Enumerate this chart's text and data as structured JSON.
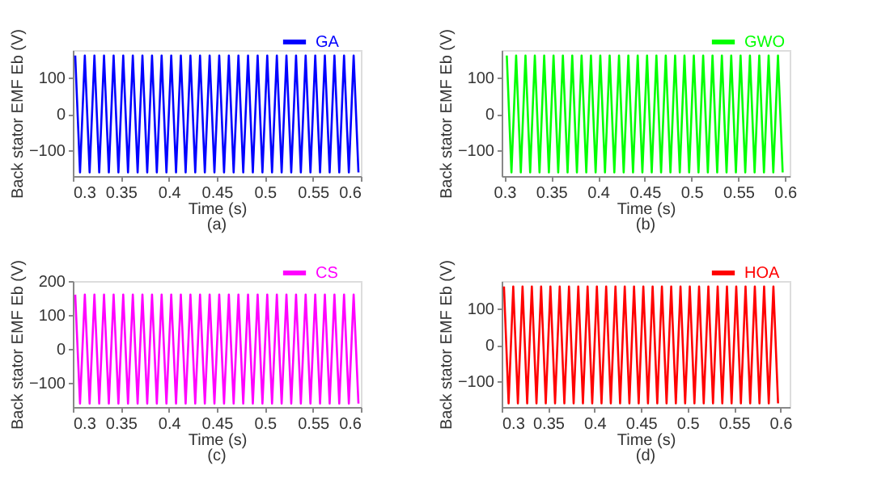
{
  "chart_data": [
    {
      "type": "line",
      "xlabel": "Time (s)",
      "ylabel": "Back stator EMF Eb (V)",
      "annotations": [
        "(a)"
      ],
      "legend": "top right",
      "grid": false,
      "xlim": [
        0.3,
        0.6
      ],
      "xticks": [
        0.3,
        0.35,
        0.4,
        0.45,
        0.5,
        0.55,
        0.6
      ],
      "ylim": [
        -170,
        175
      ],
      "yticks": [
        -100,
        0,
        100
      ],
      "x": [
        0.3025,
        0.3075,
        0.3125,
        0.3175,
        0.3225,
        0.3275,
        0.3325,
        0.3375,
        0.3425,
        0.3475,
        0.3525,
        0.3575,
        0.3625,
        0.3675,
        0.3725,
        0.3775,
        0.3825,
        0.3875,
        0.3925,
        0.3975,
        0.4025,
        0.4075,
        0.4125,
        0.4175,
        0.4225,
        0.4275,
        0.4325,
        0.4375,
        0.4425,
        0.4475,
        0.4525,
        0.4575,
        0.4625,
        0.4675,
        0.4725,
        0.4775,
        0.4825,
        0.4875,
        0.4925,
        0.4975,
        0.5025,
        0.5075,
        0.5125,
        0.5175,
        0.5225,
        0.5275,
        0.5325,
        0.5375,
        0.5425,
        0.5475,
        0.5525,
        0.5575,
        0.5625,
        0.5675,
        0.5725,
        0.5775,
        0.5825,
        0.5875,
        0.5925,
        0.5975
      ],
      "series": [
        {
          "name": "GA",
          "color": "#0000ff",
          "values": [
            160,
            -160,
            160,
            -160,
            160,
            -160,
            160,
            -160,
            160,
            -160,
            160,
            -160,
            160,
            -160,
            160,
            -160,
            160,
            -160,
            160,
            -160,
            160,
            -160,
            160,
            -160,
            160,
            -160,
            160,
            -160,
            160,
            -160,
            160,
            -160,
            160,
            -160,
            160,
            -160,
            160,
            -160,
            160,
            -160,
            160,
            -160,
            160,
            -160,
            160,
            -160,
            160,
            -160,
            160,
            -160,
            160,
            -160,
            160,
            -160,
            160,
            -160,
            160,
            -160,
            160,
            -160
          ]
        }
      ]
    },
    {
      "type": "line",
      "xlabel": "Time (s)",
      "ylabel": "Back stator EMF Eb (V)",
      "annotations": [
        "(b)"
      ],
      "legend": "top right",
      "grid": false,
      "xlim": [
        0.297,
        0.605
      ],
      "xticks": [
        0.3,
        0.35,
        0.4,
        0.45,
        0.5,
        0.55,
        0.6
      ],
      "ylim": [
        -170,
        175
      ],
      "yticks": [
        -100,
        0,
        100
      ],
      "x": [
        0.3025,
        0.3075,
        0.3125,
        0.3175,
        0.3225,
        0.3275,
        0.3325,
        0.3375,
        0.3425,
        0.3475,
        0.3525,
        0.3575,
        0.3625,
        0.3675,
        0.3725,
        0.3775,
        0.3825,
        0.3875,
        0.3925,
        0.3975,
        0.4025,
        0.4075,
        0.4125,
        0.4175,
        0.4225,
        0.4275,
        0.4325,
        0.4375,
        0.4425,
        0.4475,
        0.4525,
        0.4575,
        0.4625,
        0.4675,
        0.4725,
        0.4775,
        0.4825,
        0.4875,
        0.4925,
        0.4975,
        0.5025,
        0.5075,
        0.5125,
        0.5175,
        0.5225,
        0.5275,
        0.5325,
        0.5375,
        0.5425,
        0.5475,
        0.5525,
        0.5575,
        0.5625,
        0.5675,
        0.5725,
        0.5775,
        0.5825,
        0.5875,
        0.5925,
        0.5975
      ],
      "series": [
        {
          "name": "GWO",
          "color": "#00ff00",
          "values": [
            160,
            -160,
            160,
            -160,
            160,
            -160,
            160,
            -160,
            160,
            -160,
            160,
            -160,
            160,
            -160,
            160,
            -160,
            160,
            -160,
            160,
            -160,
            160,
            -160,
            160,
            -160,
            160,
            -160,
            160,
            -160,
            160,
            -160,
            160,
            -160,
            160,
            -160,
            160,
            -160,
            160,
            -160,
            160,
            -160,
            160,
            -160,
            160,
            -160,
            160,
            -160,
            160,
            -160,
            160,
            -160,
            160,
            -160,
            160,
            -160,
            160,
            -160,
            160,
            -160,
            160,
            -160
          ]
        }
      ]
    },
    {
      "type": "line",
      "xlabel": "Time (s)",
      "ylabel": "Back stator EMF Eb (V)",
      "annotations": [
        "(c)"
      ],
      "legend": "top right",
      "grid": false,
      "xlim": [
        0.3,
        0.6
      ],
      "xticks": [
        0.3,
        0.35,
        0.4,
        0.45,
        0.5,
        0.55,
        0.6
      ],
      "ylim": [
        -170,
        200
      ],
      "yticks": [
        -100,
        0,
        100,
        200
      ],
      "x": [
        0.3025,
        0.3075,
        0.3125,
        0.3175,
        0.3225,
        0.3275,
        0.3325,
        0.3375,
        0.3425,
        0.3475,
        0.3525,
        0.3575,
        0.3625,
        0.3675,
        0.3725,
        0.3775,
        0.3825,
        0.3875,
        0.3925,
        0.3975,
        0.4025,
        0.4075,
        0.4125,
        0.4175,
        0.4225,
        0.4275,
        0.4325,
        0.4375,
        0.4425,
        0.4475,
        0.4525,
        0.4575,
        0.4625,
        0.4675,
        0.4725,
        0.4775,
        0.4825,
        0.4875,
        0.4925,
        0.4975,
        0.5025,
        0.5075,
        0.5125,
        0.5175,
        0.5225,
        0.5275,
        0.5325,
        0.5375,
        0.5425,
        0.5475,
        0.5525,
        0.5575,
        0.5625,
        0.5675,
        0.5725,
        0.5775,
        0.5825,
        0.5875,
        0.5925,
        0.5975
      ],
      "series": [
        {
          "name": "CS",
          "color": "#ff00ff",
          "values": [
            160,
            -160,
            160,
            -160,
            160,
            -160,
            160,
            -160,
            160,
            -160,
            160,
            -160,
            160,
            -160,
            160,
            -160,
            160,
            -160,
            160,
            -160,
            160,
            -160,
            160,
            -160,
            160,
            -160,
            160,
            -160,
            160,
            -160,
            160,
            -160,
            160,
            -160,
            160,
            -160,
            160,
            -160,
            160,
            -160,
            160,
            -160,
            160,
            -160,
            160,
            -160,
            160,
            -160,
            160,
            -160,
            160,
            -160,
            160,
            -160,
            160,
            -160,
            160,
            -160,
            160,
            -160
          ]
        }
      ]
    },
    {
      "type": "line",
      "xlabel": "Time (s)",
      "ylabel": "Back stator EMF Eb (V)",
      "annotations": [
        "(d)"
      ],
      "legend": "top right",
      "grid": false,
      "xlim": [
        0.3,
        0.61
      ],
      "xticks": [
        0.3,
        0.35,
        0.4,
        0.45,
        0.5,
        0.55,
        0.6
      ],
      "ylim": [
        -170,
        175
      ],
      "yticks": [
        -100,
        0,
        100
      ],
      "x": [
        0.3025,
        0.3075,
        0.3125,
        0.3175,
        0.3225,
        0.3275,
        0.3325,
        0.3375,
        0.3425,
        0.3475,
        0.3525,
        0.3575,
        0.3625,
        0.3675,
        0.3725,
        0.3775,
        0.3825,
        0.3875,
        0.3925,
        0.3975,
        0.4025,
        0.4075,
        0.4125,
        0.4175,
        0.4225,
        0.4275,
        0.4325,
        0.4375,
        0.4425,
        0.4475,
        0.4525,
        0.4575,
        0.4625,
        0.4675,
        0.4725,
        0.4775,
        0.4825,
        0.4875,
        0.4925,
        0.4975,
        0.5025,
        0.5075,
        0.5125,
        0.5175,
        0.5225,
        0.5275,
        0.5325,
        0.5375,
        0.5425,
        0.5475,
        0.5525,
        0.5575,
        0.5625,
        0.5675,
        0.5725,
        0.5775,
        0.5825,
        0.5875,
        0.5925,
        0.5975
      ],
      "series": [
        {
          "name": "HOA",
          "color": "#ff0000",
          "values": [
            160,
            -160,
            160,
            -160,
            160,
            -160,
            160,
            -160,
            160,
            -160,
            160,
            -160,
            160,
            -160,
            160,
            -160,
            160,
            -160,
            160,
            -160,
            160,
            -160,
            160,
            -160,
            160,
            -160,
            160,
            -160,
            160,
            -160,
            160,
            -160,
            160,
            -160,
            160,
            -160,
            160,
            -160,
            160,
            -160,
            160,
            -160,
            160,
            -160,
            160,
            -160,
            160,
            -160,
            160,
            -160,
            160,
            -160,
            160,
            -160,
            160,
            -160,
            160,
            -160,
            160,
            -160
          ]
        }
      ]
    }
  ]
}
